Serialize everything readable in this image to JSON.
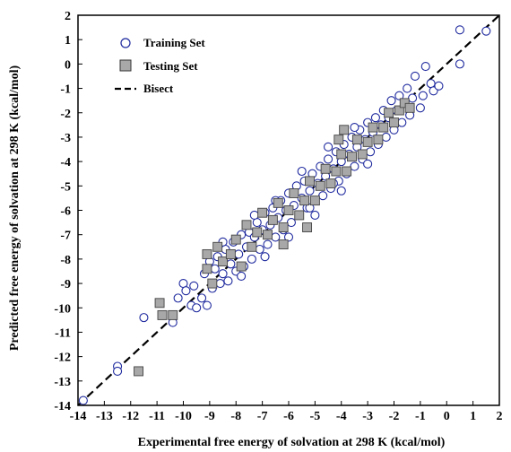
{
  "chart_data": {
    "type": "scatter",
    "title": "",
    "xlabel": "Experimental  free energy of solvation at 298 K (kcal/mol)",
    "ylabel": "Predicted free energy of solvation at 298 K (kcal/mol)",
    "xlim": [
      -14,
      2
    ],
    "ylim": [
      -14,
      2
    ],
    "xticks": [
      "-14",
      "-13",
      "-12",
      "-11",
      "-10",
      "-9",
      "-8",
      "-7",
      "-6",
      "-5",
      "-4",
      "-3",
      "-2",
      "-1",
      "0",
      "1",
      "2"
    ],
    "yticks": [
      "2",
      "1",
      "0",
      "-1",
      "-2",
      "-3",
      "-4",
      "-5",
      "-6",
      "-7",
      "-8",
      "-9",
      "-10",
      "-11",
      "-12",
      "-13",
      "-14"
    ],
    "grid": false,
    "legend_position": "top-left",
    "series": [
      {
        "name": "Training Set",
        "marker": "circle-open",
        "color": "#1f2a9e",
        "points": [
          [
            -13.8,
            -13.8
          ],
          [
            -12.5,
            -12.4
          ],
          [
            -12.5,
            -12.6
          ],
          [
            -11.5,
            -10.4
          ],
          [
            -10.4,
            -10.6
          ],
          [
            -10.2,
            -9.6
          ],
          [
            -10,
            -9
          ],
          [
            -9.9,
            -9.3
          ],
          [
            -9.7,
            -9.9
          ],
          [
            -9.6,
            -9.1
          ],
          [
            -9.5,
            -10
          ],
          [
            -9.3,
            -9.6
          ],
          [
            -9.2,
            -8.6
          ],
          [
            -9.1,
            -9.9
          ],
          [
            -9,
            -8.1
          ],
          [
            -8.9,
            -9.2
          ],
          [
            -8.8,
            -8.4
          ],
          [
            -8.7,
            -7.9
          ],
          [
            -8.6,
            -9
          ],
          [
            -8.5,
            -8.6
          ],
          [
            -8.4,
            -7.6
          ],
          [
            -8.3,
            -8.9
          ],
          [
            -8.2,
            -8.2
          ],
          [
            -8.1,
            -7.3
          ],
          [
            -8,
            -8.5
          ],
          [
            -7.9,
            -7.8
          ],
          [
            -7.8,
            -7
          ],
          [
            -7.7,
            -8.3
          ],
          [
            -7.6,
            -7.5
          ],
          [
            -7.5,
            -6.9
          ],
          [
            -7.4,
            -8
          ],
          [
            -7.3,
            -7.1
          ],
          [
            -7.2,
            -6.5
          ],
          [
            -7.1,
            -7.6
          ],
          [
            -7,
            -6.8
          ],
          [
            -6.9,
            -6.1
          ],
          [
            -6.8,
            -7.4
          ],
          [
            -6.7,
            -6.6
          ],
          [
            -6.6,
            -5.9
          ],
          [
            -6.5,
            -7.1
          ],
          [
            -6.4,
            -6.3
          ],
          [
            -6.3,
            -5.6
          ],
          [
            -6.2,
            -6.8
          ],
          [
            -6.1,
            -6
          ],
          [
            -6,
            -5.3
          ],
          [
            -5.9,
            -6.5
          ],
          [
            -5.8,
            -5.8
          ],
          [
            -5.7,
            -5
          ],
          [
            -5.6,
            -6.2
          ],
          [
            -5.5,
            -5.5
          ],
          [
            -5.4,
            -4.8
          ],
          [
            -5.3,
            -5.9
          ],
          [
            -5.2,
            -5.2
          ],
          [
            -5.1,
            -4.5
          ],
          [
            -5,
            -5.6
          ],
          [
            -4.9,
            -4.9
          ],
          [
            -4.8,
            -4.2
          ],
          [
            -4.7,
            -5.4
          ],
          [
            -4.6,
            -4.6
          ],
          [
            -4.5,
            -3.9
          ],
          [
            -4.4,
            -5.1
          ],
          [
            -4.3,
            -4.3
          ],
          [
            -4.2,
            -3.6
          ],
          [
            -4.1,
            -4.8
          ],
          [
            -4,
            -4
          ],
          [
            -3.9,
            -3.3
          ],
          [
            -3.8,
            -4.5
          ],
          [
            -3.7,
            -3.7
          ],
          [
            -3.6,
            -3
          ],
          [
            -3.5,
            -4.2
          ],
          [
            -3.4,
            -3.4
          ],
          [
            -3.3,
            -2.7
          ],
          [
            -3.2,
            -3.9
          ],
          [
            -3.1,
            -3.1
          ],
          [
            -3,
            -2.4
          ],
          [
            -2.9,
            -3.6
          ],
          [
            -2.8,
            -2.8
          ],
          [
            -2.7,
            -2.2
          ],
          [
            -2.6,
            -3.3
          ],
          [
            -2.5,
            -2.5
          ],
          [
            -2.4,
            -1.9
          ],
          [
            -2.3,
            -3
          ],
          [
            -2.2,
            -2.2
          ],
          [
            -2.1,
            -1.5
          ],
          [
            -2,
            -2.7
          ],
          [
            -1.9,
            -1.9
          ],
          [
            -1.8,
            -1.3
          ],
          [
            -1.7,
            -2.4
          ],
          [
            -1.6,
            -1.6
          ],
          [
            -1.5,
            -1
          ],
          [
            -1.4,
            -2.1
          ],
          [
            -1.3,
            -1.4
          ],
          [
            -1.2,
            -0.5
          ],
          [
            -1,
            -1.8
          ],
          [
            -0.9,
            -1.3
          ],
          [
            -0.8,
            -0.1
          ],
          [
            -0.6,
            -0.8
          ],
          [
            -0.5,
            -1.1
          ],
          [
            -0.3,
            -0.9
          ],
          [
            0.5,
            1.4
          ],
          [
            0.5,
            0
          ],
          [
            1.5,
            1.35
          ],
          [
            -8.5,
            -7.3
          ],
          [
            -7.8,
            -8.7
          ],
          [
            -6.5,
            -5.6
          ],
          [
            -6,
            -7.1
          ],
          [
            -5.5,
            -4.4
          ],
          [
            -5,
            -6.2
          ],
          [
            -4.5,
            -3.4
          ],
          [
            -4,
            -5.2
          ],
          [
            -3.5,
            -2.6
          ],
          [
            -3,
            -4.1
          ],
          [
            -6.9,
            -7.9
          ],
          [
            -7.3,
            -6.2
          ],
          [
            -5.2,
            -5.9
          ],
          [
            -4.3,
            -4.9
          ]
        ]
      },
      {
        "name": "Testing Set",
        "marker": "square-filled",
        "color": "#a8a8a8",
        "points": [
          [
            -11.7,
            -12.6
          ],
          [
            -10.9,
            -9.8
          ],
          [
            -10.8,
            -10.3
          ],
          [
            -10.4,
            -10.3
          ],
          [
            -9.1,
            -8.4
          ],
          [
            -9.1,
            -7.8
          ],
          [
            -8.9,
            -9
          ],
          [
            -8.7,
            -7.5
          ],
          [
            -8.5,
            -8.1
          ],
          [
            -8.2,
            -7.8
          ],
          [
            -8,
            -7.2
          ],
          [
            -7.8,
            -8.3
          ],
          [
            -7.6,
            -6.6
          ],
          [
            -7.4,
            -7.5
          ],
          [
            -7.2,
            -6.9
          ],
          [
            -7,
            -6.1
          ],
          [
            -6.8,
            -7
          ],
          [
            -6.6,
            -6.4
          ],
          [
            -6.4,
            -5.7
          ],
          [
            -6.2,
            -6.7
          ],
          [
            -6,
            -6
          ],
          [
            -5.8,
            -5.3
          ],
          [
            -5.6,
            -6.2
          ],
          [
            -5.4,
            -5.6
          ],
          [
            -5.2,
            -4.8
          ],
          [
            -5,
            -5.6
          ],
          [
            -4.8,
            -5
          ],
          [
            -4.6,
            -4.3
          ],
          [
            -4.4,
            -4.9
          ],
          [
            -4.2,
            -4.4
          ],
          [
            -4,
            -3.7
          ],
          [
            -3.8,
            -4.4
          ],
          [
            -3.6,
            -3.8
          ],
          [
            -3.4,
            -3.1
          ],
          [
            -3.2,
            -3.7
          ],
          [
            -3,
            -3.2
          ],
          [
            -2.8,
            -2.6
          ],
          [
            -2.6,
            -3.1
          ],
          [
            -2.4,
            -2.6
          ],
          [
            -2.2,
            -2
          ],
          [
            -2,
            -2.4
          ],
          [
            -1.8,
            -1.9
          ],
          [
            -1.6,
            -1.6
          ],
          [
            -1.4,
            -1.8
          ],
          [
            -4.1,
            -3.1
          ],
          [
            -6.2,
            -7.4
          ],
          [
            -3.9,
            -2.7
          ],
          [
            -5.3,
            -6.7
          ]
        ]
      },
      {
        "name": "Bisect",
        "marker": "dashed-line",
        "color": "#000000",
        "points": [
          [
            -14,
            -14
          ],
          [
            2,
            2
          ]
        ]
      }
    ]
  }
}
